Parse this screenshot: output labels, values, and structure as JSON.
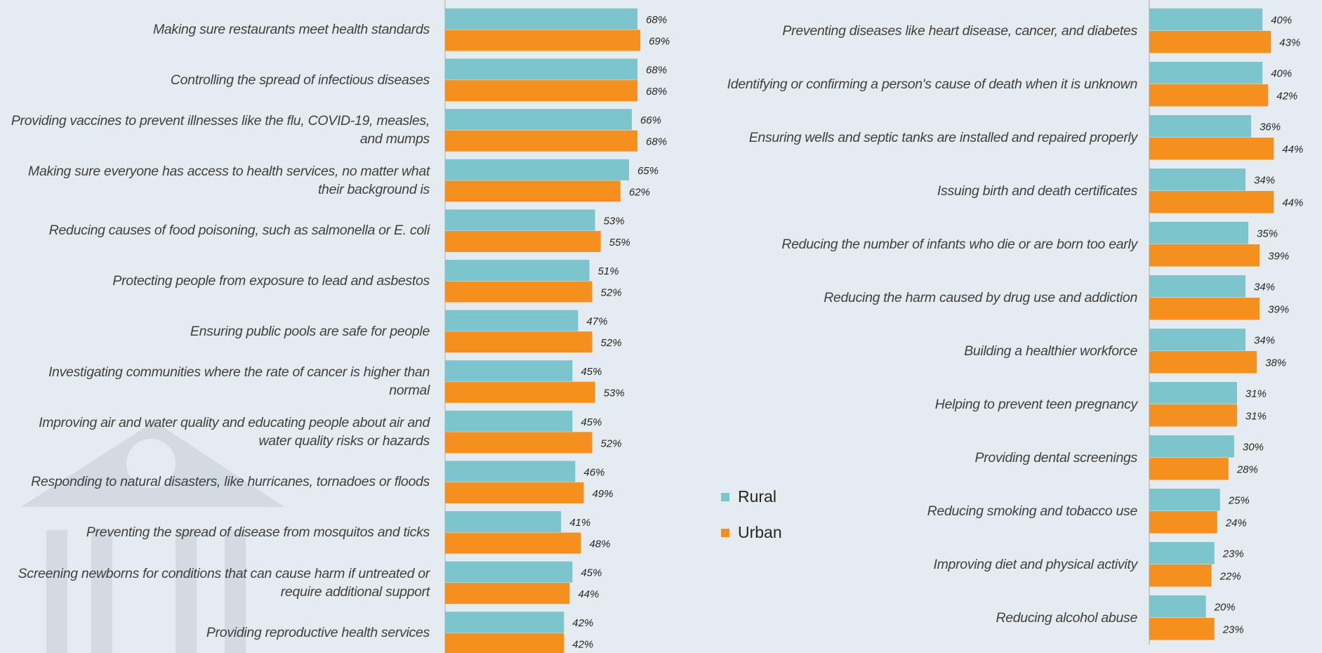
{
  "chart_data": [
    {
      "type": "bar",
      "orientation": "horizontal",
      "categories": [
        "Making sure restaurants meet health standards",
        "Controlling the spread of infectious diseases",
        "Providing vaccines to prevent illnesses like the flu, COVID-19, measles, and mumps",
        "Making sure everyone has access to health services, no matter what their background is",
        "Reducing causes of food poisoning, such as salmonella or E. coli",
        "Protecting people from exposure to lead and asbestos",
        "Ensuring public pools are safe for people",
        "Investigating communities where the rate of cancer is higher than normal",
        "Improving air and water quality and educating people about air and water quality risks or hazards",
        "Responding to natural disasters, like hurricanes, tornadoes or floods",
        "Preventing the spread of disease from mosquitos and ticks",
        "Screening newborns for conditions that can cause harm if untreated or require additional support",
        "Providing reproductive health services"
      ],
      "series": [
        {
          "name": "Rural",
          "color": "#7cc5cc",
          "values": [
            68,
            68,
            66,
            65,
            53,
            51,
            47,
            45,
            45,
            46,
            41,
            45,
            42
          ],
          "value_labels": [
            "68%",
            "68%",
            "66%",
            "65%",
            "53%",
            "51%",
            "47%",
            "45%",
            "45%",
            "46%",
            "41%",
            "45%",
            "42%"
          ]
        },
        {
          "name": "Urban",
          "color": "#f5901e",
          "values": [
            69,
            68,
            68,
            62,
            55,
            52,
            52,
            53,
            52,
            49,
            48,
            44,
            42
          ],
          "value_labels": [
            "69%",
            "68%",
            "68%",
            "62%",
            "55%",
            "52%",
            "52%",
            "53%",
            "52%",
            "49%",
            "48%",
            "44%",
            "42%"
          ]
        }
      ]
    },
    {
      "type": "bar",
      "orientation": "horizontal",
      "categories": [
        "Preventing diseases like heart disease, cancer, and diabetes",
        "Identifying or confirming a person's cause of death when it is unknown",
        "Ensuring wells and septic tanks are installed and repaired properly",
        "Issuing birth and death certificates",
        "Reducing the number of infants who die or are born too early",
        "Reducing the harm caused by drug use and addiction",
        "Building a healthier workforce",
        "Helping to prevent teen pregnancy",
        "Providing dental screenings",
        "Reducing smoking and tobacco use",
        "Improving diet and physical activity",
        "Reducing alcohol abuse"
      ],
      "series": [
        {
          "color": "#7cc5cc",
          "values": [
            40,
            40,
            36,
            34,
            35,
            34,
            34,
            31,
            30,
            25,
            23,
            20
          ],
          "value_labels": [
            "40%",
            "40%",
            "36%",
            "34%",
            "35%",
            "34%",
            "34%",
            "31%",
            "30%",
            "25%",
            "23%",
            "20%"
          ]
        },
        {
          "color": "#f5901e",
          "values": [
            43,
            42,
            44,
            44,
            39,
            39,
            38,
            31,
            28,
            24,
            22,
            23
          ],
          "value_labels": [
            "43%",
            "42%",
            "44%",
            "44%",
            "39%",
            "39%",
            "38%",
            "31%",
            "28%",
            "24%",
            "22%",
            "23%"
          ]
        }
      ]
    }
  ]
}
